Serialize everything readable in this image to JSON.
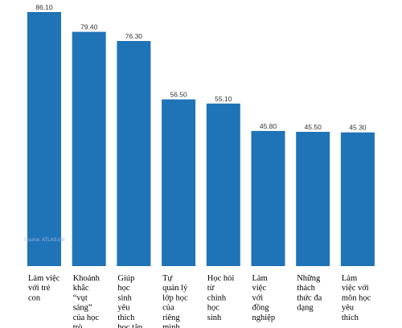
{
  "chart_data": {
    "type": "bar",
    "title": "",
    "xlabel": "",
    "ylabel": "",
    "ylim": [
      0,
      90
    ],
    "grid": false,
    "legend": "none",
    "bar_color": "#1f73b7",
    "categories": [
      [
        "Làm việc",
        "với trẻ",
        "con"
      ],
      [
        "Khoảnh",
        "khắc",
        "“vụt",
        "sáng”",
        "của học",
        "trò"
      ],
      [
        "Giúp",
        "học",
        "sinh",
        "yêu",
        "thích",
        "học tập"
      ],
      [
        "Tự",
        "quản lý",
        "lớp học",
        "của",
        "riêng",
        "mình"
      ],
      [
        "Học hỏi",
        "từ",
        "chính",
        "học",
        "sinh"
      ],
      [
        "Làm",
        "việc",
        "với",
        "đồng",
        "nghiệp"
      ],
      [
        "Những",
        "thách",
        "thức đa",
        "dạng"
      ],
      [
        "Làm",
        "việc với",
        "môn học",
        "yêu",
        "thích"
      ]
    ],
    "values": [
      86.1,
      79.4,
      76.3,
      56.5,
      55.1,
      45.8,
      45.5,
      45.3
    ],
    "value_labels": [
      "86.10",
      "79.40",
      "76.30",
      "56.50",
      "55.10",
      "45.80",
      "45.50",
      "45.30"
    ]
  },
  "source": "Source: ATLAS.net"
}
